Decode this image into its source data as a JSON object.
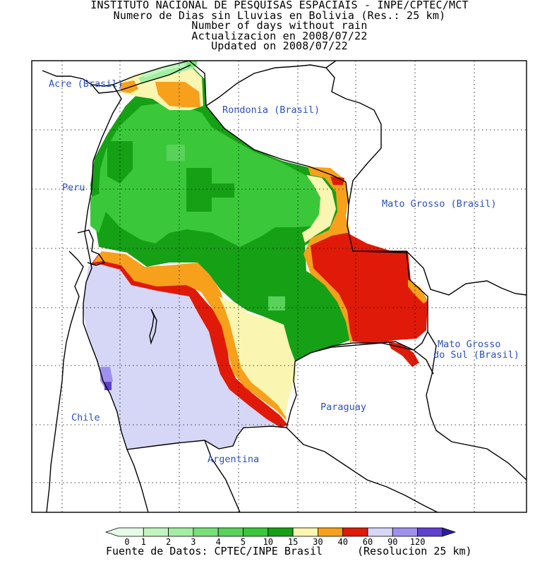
{
  "title": {
    "lines": [
      "INSTITUTO NACIONAL DE PESQUISAS ESPACIAIS - INPE/CPTEC/MCT",
      "Numero de Dias sin Lluvias en Bolivia (Res.: 25 km)",
      "Number of days without rain",
      "Actualizacion en 2008/07/22",
      "Updated on 2008/07/22"
    ]
  },
  "map": {
    "labels": {
      "acre": "Acre (Brasil)",
      "rondonia": "Rondonia (Brasil)",
      "peru": "Peru",
      "mato_grosso": "Mato Grosso (Brasil)",
      "mato_grosso_sul_1": "Mato Grosso",
      "mato_grosso_sul_2": "do Sul (Brasil)",
      "paraguay": "Paraguay",
      "chile": "Chile",
      "argentina": "Argentina"
    },
    "colors": {
      "border": "#000000",
      "label": "#2b4fc4",
      "c_0_1": "#e6fbe6",
      "c_1_2": "#c0f5c0",
      "c_2_3": "#a2eea2",
      "c_3_4": "#76e076",
      "c_4_5": "#58d258",
      "c_5_10": "#3ac83a",
      "c_10_15": "#16a016",
      "c_15_30": "#faf5b0",
      "c_30_40": "#f7a01c",
      "c_40_60": "#e01a08",
      "c_60_90": "#d6d6f6",
      "c_90_120": "#a090ee",
      "c_120_plus": "#6040d0",
      "c_open_end": "#2a1fa0"
    }
  },
  "legend": {
    "ticks": [
      "0",
      "1",
      "2",
      "3",
      "4",
      "5",
      "10",
      "15",
      "30",
      "40",
      "60",
      "90",
      "120"
    ],
    "colors": [
      "#e6fbe6",
      "#c0f5c0",
      "#a2eea2",
      "#76e076",
      "#58d258",
      "#3ac83a",
      "#16a016",
      "#faf5b0",
      "#f7a01c",
      "#e01a08",
      "#d6d6f6",
      "#a090ee",
      "#6040d0",
      "#2a1fa0"
    ]
  },
  "footer": {
    "source": "Fuente de Datos: CPTEC/INPE Brasil",
    "resolution": "(Resolucion 25 km)"
  }
}
